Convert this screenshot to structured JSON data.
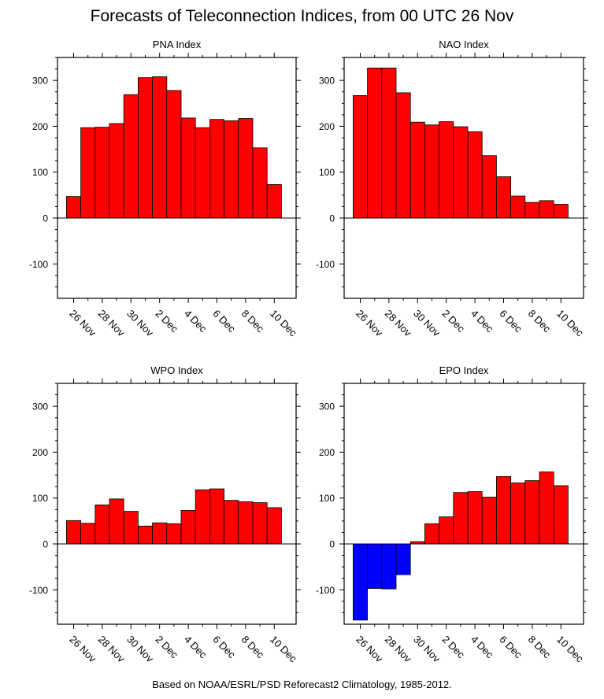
{
  "title": "Forecasts of Teleconnection Indices, from 00 UTC 26 Nov",
  "footer": "Based on NOAA/ESRL/PSD Reforecast2 Climatology, 1985-2012.",
  "colors": {
    "positive": "#ff0000",
    "negative": "#0000ff",
    "outline": "#000000"
  },
  "chart_data": [
    {
      "type": "bar",
      "title": "PNA Index",
      "x": [
        "26 Nov",
        "27 Nov",
        "28 Nov",
        "29 Nov",
        "30 Nov",
        "1 Dec",
        "2 Dec",
        "3 Dec",
        "4 Dec",
        "5 Dec",
        "6 Dec",
        "7 Dec",
        "8 Dec",
        "9 Dec",
        "10 Dec"
      ],
      "values": [
        47,
        197,
        198,
        206,
        269,
        306,
        308,
        278,
        218,
        197,
        215,
        212,
        217,
        153,
        73
      ],
      "xtick_labels": [
        "26 Nov",
        "28 Nov",
        "30 Nov",
        "2 Dec",
        "4 Dec",
        "6 Dec",
        "8 Dec",
        "10 Dec"
      ],
      "yticks": [
        -100,
        0,
        100,
        200,
        300
      ],
      "ylim": [
        -175,
        350
      ],
      "grid": false
    },
    {
      "type": "bar",
      "title": "NAO Index",
      "x": [
        "26 Nov",
        "27 Nov",
        "28 Nov",
        "29 Nov",
        "30 Nov",
        "1 Dec",
        "2 Dec",
        "3 Dec",
        "4 Dec",
        "5 Dec",
        "6 Dec",
        "7 Dec",
        "8 Dec",
        "9 Dec",
        "10 Dec"
      ],
      "values": [
        267,
        327,
        327,
        273,
        209,
        203,
        210,
        199,
        188,
        136,
        90,
        48,
        34,
        38,
        30
      ],
      "xtick_labels": [
        "26 Nov",
        "28 Nov",
        "30 Nov",
        "2 Dec",
        "4 Dec",
        "6 Dec",
        "8 Dec",
        "10 Dec"
      ],
      "yticks": [
        -100,
        0,
        100,
        200,
        300
      ],
      "ylim": [
        -175,
        350
      ],
      "grid": false
    },
    {
      "type": "bar",
      "title": "WPO Index",
      "x": [
        "26 Nov",
        "27 Nov",
        "28 Nov",
        "29 Nov",
        "30 Nov",
        "1 Dec",
        "2 Dec",
        "3 Dec",
        "4 Dec",
        "5 Dec",
        "6 Dec",
        "7 Dec",
        "8 Dec",
        "9 Dec",
        "10 Dec"
      ],
      "values": [
        51,
        45,
        85,
        98,
        71,
        39,
        46,
        44,
        73,
        118,
        120,
        95,
        92,
        90,
        79
      ],
      "xtick_labels": [
        "26 Nov",
        "28 Nov",
        "30 Nov",
        "2 Dec",
        "4 Dec",
        "6 Dec",
        "8 Dec",
        "10 Dec"
      ],
      "yticks": [
        -100,
        0,
        100,
        200,
        300
      ],
      "ylim": [
        -175,
        350
      ],
      "grid": false
    },
    {
      "type": "bar",
      "title": "EPO Index",
      "x": [
        "26 Nov",
        "27 Nov",
        "28 Nov",
        "29 Nov",
        "30 Nov",
        "1 Dec",
        "2 Dec",
        "3 Dec",
        "4 Dec",
        "5 Dec",
        "6 Dec",
        "7 Dec",
        "8 Dec",
        "9 Dec",
        "10 Dec"
      ],
      "values": [
        -166,
        -97,
        -98,
        -67,
        5,
        44,
        59,
        112,
        114,
        102,
        147,
        133,
        138,
        157,
        127
      ],
      "xtick_labels": [
        "26 Nov",
        "28 Nov",
        "30 Nov",
        "2 Dec",
        "4 Dec",
        "6 Dec",
        "8 Dec",
        "10 Dec"
      ],
      "yticks": [
        -100,
        0,
        100,
        200,
        300
      ],
      "ylim": [
        -175,
        350
      ],
      "grid": false
    }
  ]
}
